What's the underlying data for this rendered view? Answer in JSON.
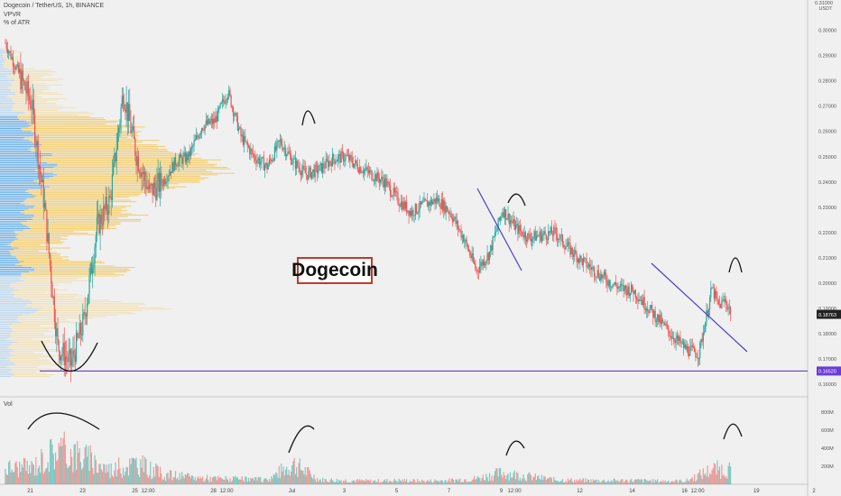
{
  "legend": {
    "title": "Dogecoin / TetherUS, 1h, BINANCE",
    "indicator": "VPVR",
    "subindicator": "% of ATR"
  },
  "annotation_label": "Dogecoin",
  "volume_label": "Vol",
  "price_axis": {
    "currency": "USDT",
    "top_label": "0.31000",
    "ticks": [
      "0.30000",
      "0.29000",
      "0.28000",
      "0.27000",
      "0.26000",
      "0.25000",
      "0.24000",
      "0.23000",
      "0.22000",
      "0.21000",
      "0.20000",
      "0.19000",
      "0.18000",
      "0.17000",
      "0.16000"
    ],
    "current_price": "0.18763",
    "support_price": "0.16520",
    "ylim": [
      0.155,
      0.312
    ]
  },
  "volume_axis": {
    "ticks": [
      "800M",
      "600M",
      "400M",
      "200M"
    ]
  },
  "time_axis": {
    "ticks": [
      "21",
      "23",
      "25",
      "12:00",
      "28",
      "12:00",
      "Jul",
      "3",
      "5",
      "7",
      "9",
      "12:00",
      "12",
      "14",
      "16",
      "12:00",
      "19",
      "2"
    ]
  },
  "colors": {
    "up": "#26a69a",
    "down": "#ef5350",
    "support": "#6a3cd4",
    "trend": "#4b3fd0",
    "vp_up": "#f5c242",
    "vp_down": "#3d9be9"
  },
  "chart_data": {
    "type": "candlestick",
    "title": "Dogecoin / TetherUS, 1h, BINANCE",
    "x_range": [
      "2021-06-20",
      "2021-07-19"
    ],
    "price_path": {
      "x": [
        "06-20 00:00",
        "06-20 12:00",
        "06-21 00:00",
        "06-21 12:00",
        "06-22 00:00",
        "06-22 12:00",
        "06-23 00:00",
        "06-23 12:00",
        "06-24 00:00",
        "06-24 12:00",
        "06-25 00:00",
        "06-25 12:00",
        "06-26 00:00",
        "06-26 12:00",
        "06-27 00:00",
        "06-27 12:00",
        "06-28 00:00",
        "06-28 12:00",
        "06-29 00:00",
        "06-29 12:00",
        "06-30 00:00",
        "06-30 12:00",
        "07-01 00:00",
        "07-01 12:00",
        "07-02 00:00",
        "07-02 12:00",
        "07-03 00:00",
        "07-03 12:00",
        "07-04 00:00",
        "07-04 12:00",
        "07-05 00:00",
        "07-05 12:00",
        "07-06 00:00",
        "07-06 12:00",
        "07-07 00:00",
        "07-07 12:00",
        "07-08 00:00",
        "07-08 12:00",
        "07-09 00:00",
        "07-09 12:00",
        "07-10 00:00",
        "07-10 12:00",
        "07-11 00:00",
        "07-11 12:00",
        "07-12 00:00",
        "07-12 12:00",
        "07-13 00:00",
        "07-13 12:00",
        "07-14 00:00",
        "07-14 12:00",
        "07-15 00:00",
        "07-15 12:00",
        "07-16 00:00",
        "07-16 12:00",
        "07-17 00:00",
        "07-17 06:00",
        "07-17 12:00",
        "07-17 18:00"
      ],
      "close": [
        0.295,
        0.283,
        0.271,
        0.23,
        0.175,
        0.168,
        0.185,
        0.222,
        0.233,
        0.276,
        0.251,
        0.236,
        0.24,
        0.248,
        0.25,
        0.262,
        0.264,
        0.276,
        0.258,
        0.25,
        0.246,
        0.256,
        0.248,
        0.243,
        0.245,
        0.249,
        0.25,
        0.246,
        0.243,
        0.24,
        0.233,
        0.228,
        0.231,
        0.233,
        0.228,
        0.218,
        0.205,
        0.212,
        0.229,
        0.222,
        0.218,
        0.219,
        0.22,
        0.214,
        0.209,
        0.205,
        0.201,
        0.198,
        0.197,
        0.191,
        0.185,
        0.179,
        0.174,
        0.172,
        0.198,
        0.191,
        0.193,
        0.188
      ]
    },
    "volume_path": {
      "x": [
        "06-21",
        "06-22",
        "06-23",
        "06-24",
        "06-25",
        "06-26",
        "06-27",
        "06-28",
        "06-29",
        "06-30",
        "07-01",
        "07-02",
        "07-03",
        "07-04",
        "07-05",
        "07-06",
        "07-07",
        "07-08",
        "07-09",
        "07-10",
        "07-11",
        "07-12",
        "07-13",
        "07-14",
        "07-15",
        "07-16",
        "07-17"
      ],
      "typical_volume_M": [
        260,
        560,
        430,
        230,
        330,
        160,
        110,
        90,
        80,
        70,
        320,
        70,
        60,
        50,
        60,
        50,
        60,
        90,
        180,
        120,
        70,
        60,
        55,
        60,
        50,
        50,
        230
      ]
    },
    "support_level": 0.1652,
    "last_price": 0.18763,
    "ylim": [
      0.155,
      0.312
    ]
  }
}
